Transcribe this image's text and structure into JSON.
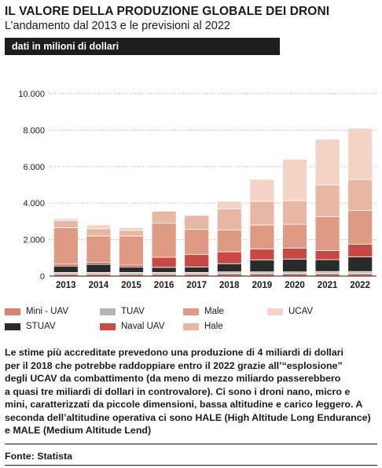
{
  "header": {
    "title": "IL VALORE DELLA PRODUZIONE GLOBALE DEI DRONI",
    "subtitle": "L’andamento dal 2013 e le previsioni al 2022",
    "unit_label": "dati in milioni di dollari"
  },
  "chart_data": {
    "type": "bar",
    "stacked": true,
    "categories": [
      "2013",
      "2014",
      "2015",
      "2016",
      "2017",
      "2018",
      "2019",
      "2020",
      "2021",
      "2022"
    ],
    "ylim": [
      0,
      10000
    ],
    "yticks": [
      0,
      2000,
      4000,
      6000,
      8000,
      10000
    ],
    "ytick_labels": [
      "0",
      "2.000",
      "4.000",
      "6.000",
      "8.000",
      "10.000"
    ],
    "grid": "horizontal dotted",
    "series": [
      {
        "name": "Mini - UAV",
        "color": "#d9826c",
        "values": [
          120,
          120,
          120,
          120,
          120,
          150,
          150,
          150,
          150,
          150
        ]
      },
      {
        "name": "TUAV",
        "color": "#b3b3b3",
        "values": [
          80,
          80,
          80,
          80,
          80,
          80,
          80,
          80,
          100,
          100
        ]
      },
      {
        "name": "STUAV",
        "color": "#2b2b2b",
        "values": [
          350,
          450,
          300,
          280,
          300,
          450,
          650,
          700,
          650,
          800
        ]
      },
      {
        "name": "Naval UAV",
        "color": "#c94a45",
        "values": [
          100,
          100,
          100,
          550,
          680,
          650,
          600,
          600,
          500,
          700
        ]
      },
      {
        "name": "Male",
        "color": "#df9a83",
        "values": [
          2000,
          1450,
          1600,
          1870,
          1390,
          1200,
          1320,
          1310,
          1850,
          1850
        ]
      },
      {
        "name": "Hale",
        "color": "#e8b7a4",
        "values": [
          400,
          400,
          300,
          650,
          750,
          1150,
          1300,
          1300,
          1750,
          1700
        ]
      },
      {
        "name": "UCAV",
        "color": "#f2d3c6",
        "values": [
          100,
          200,
          150,
          0,
          0,
          420,
          1200,
          2260,
          2500,
          2800
        ]
      }
    ]
  },
  "legend": {
    "items": [
      {
        "label": "Mini - UAV",
        "color": "#d9826c"
      },
      {
        "label": "STUAV",
        "color": "#2b2b2b"
      },
      {
        "label": "TUAV",
        "color": "#b3b3b3"
      },
      {
        "label": "Naval UAV",
        "color": "#c94a45"
      },
      {
        "label": "Male",
        "color": "#df9a83"
      },
      {
        "label": "Hale",
        "color": "#e8b7a4"
      },
      {
        "label": "UCAV",
        "color": "#f2d3c6"
      }
    ]
  },
  "body": {
    "lines": [
      "Le stime più accreditate prevedono una produzione di 4 miliardi di dollari",
      "per il 2018 che potrebbe raddoppiare entro il 2022 grazie all’“esplosione”",
      "degli UCAV da combattimento (da meno di mezzo miliardo passerebbero",
      "a quasi tre miliardi di dollari in controvalore). Ci sono i droni nano, micro e",
      "mini, caratterizzati da piccole dimensioni, bassa altitudine e carico leggero. A",
      "seconda dell’altitudine operativa ci sono HALE (High Altitude Long Endurance)",
      "e MALE (Medium Altitude Lend)"
    ]
  },
  "source": "Fonte: Statista"
}
